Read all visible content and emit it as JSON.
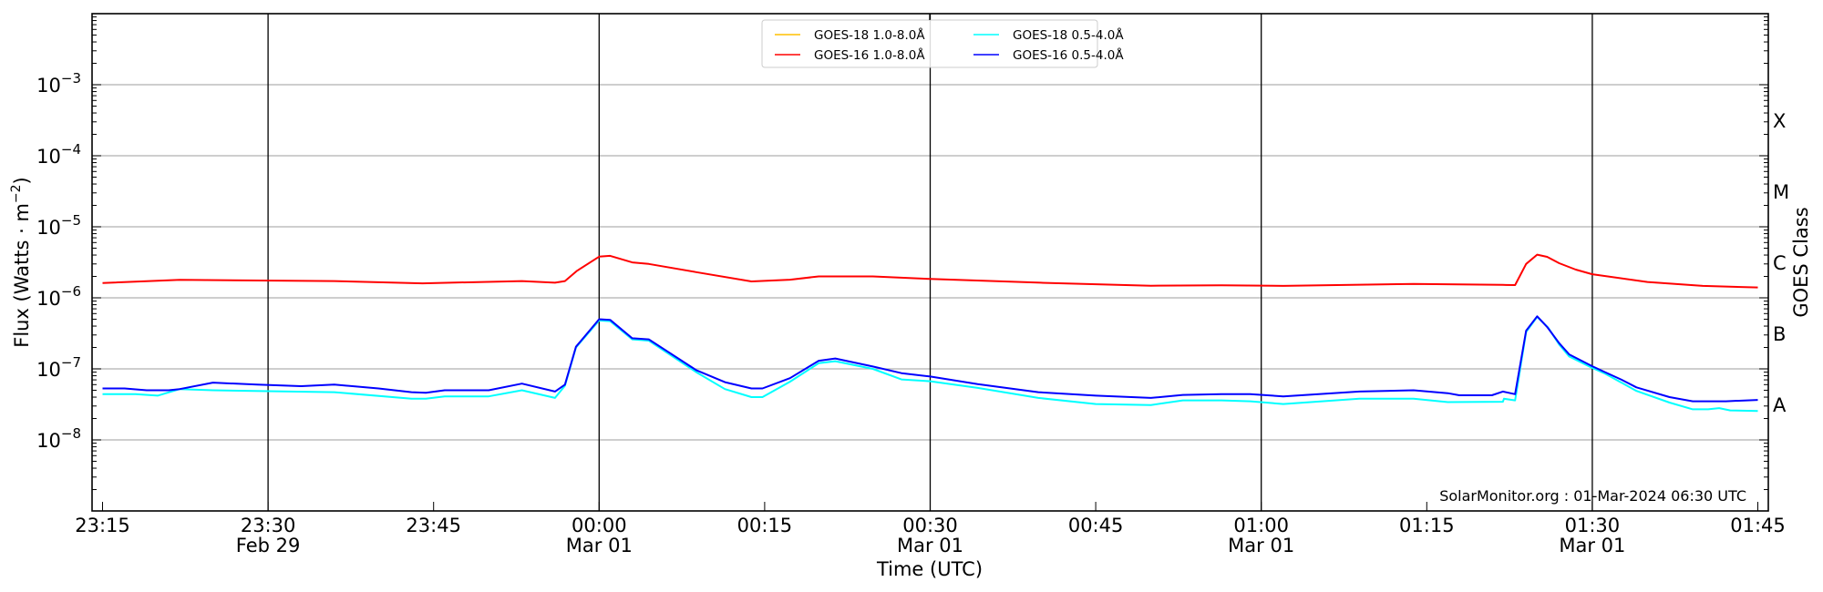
{
  "chart_data": {
    "type": "line",
    "title": "",
    "xlabel": "Time (UTC)",
    "ylabel": "Flux (Watts · m−2)",
    "ylabel_parts": {
      "main": "Flux (Watts · m",
      "exp": "−2",
      "close": ")"
    },
    "y2label": "GOES Class",
    "yscale": "log",
    "ylim": [
      1e-09,
      0.01
    ],
    "x_units": "minutes after 23:15 UTC, 29-Feb-2024",
    "xlim": [
      -0.95,
      150.95
    ],
    "grid": "horizontal at major y ticks",
    "legend_position": "top-center",
    "x_ticks": [
      {
        "t": 0,
        "label": "23:15",
        "sub": ""
      },
      {
        "t": 15,
        "label": "23:30",
        "sub": "Feb 29"
      },
      {
        "t": 30,
        "label": "23:45",
        "sub": ""
      },
      {
        "t": 45,
        "label": "00:00",
        "sub": "Mar 01"
      },
      {
        "t": 60,
        "label": "00:15",
        "sub": ""
      },
      {
        "t": 75,
        "label": "00:30",
        "sub": "Mar 01"
      },
      {
        "t": 90,
        "label": "00:45",
        "sub": ""
      },
      {
        "t": 105,
        "label": "01:00",
        "sub": "Mar 01"
      },
      {
        "t": 120,
        "label": "01:15",
        "sub": ""
      },
      {
        "t": 135,
        "label": "01:30",
        "sub": "Mar 01"
      },
      {
        "t": 150,
        "label": "01:45",
        "sub": ""
      }
    ],
    "day_lines": [
      15,
      45,
      75,
      105,
      135
    ],
    "y_ticks": [
      {
        "v": 0.001,
        "base": "10",
        "exp": "−3"
      },
      {
        "v": 0.0001,
        "base": "10",
        "exp": "−4"
      },
      {
        "v": 1e-05,
        "base": "10",
        "exp": "−5"
      },
      {
        "v": 1e-06,
        "base": "10",
        "exp": "−6"
      },
      {
        "v": 1e-07,
        "base": "10",
        "exp": "−7"
      },
      {
        "v": 1e-08,
        "base": "10",
        "exp": "−8"
      }
    ],
    "goes_classes": [
      {
        "label": "X",
        "v": 0.000316
      },
      {
        "label": "M",
        "v": 3.16e-05
      },
      {
        "label": "C",
        "v": 3.16e-06
      },
      {
        "label": "B",
        "v": 3.16e-07
      },
      {
        "label": "A",
        "v": 3.16e-08
      }
    ],
    "series": [
      {
        "name": "GOES-18 1.0-8.0Å",
        "color": "#ffc000",
        "t": [],
        "values": []
      },
      {
        "name": "GOES-16 1.0-8.0Å",
        "color": "#ff0000",
        "t": [
          0,
          7,
          21,
          29,
          38,
          41,
          41.9,
          43,
          45,
          46,
          48,
          49.5,
          53.8,
          58.8,
          62.3,
          64.9,
          69.8,
          75,
          85,
          95,
          101.4,
          107,
          118.8,
          126.9,
          128,
          129,
          130,
          130.9,
          132,
          133.5,
          135,
          140,
          145,
          150
        ],
        "values": [
          1.62e-06,
          1.79e-06,
          1.72e-06,
          1.6e-06,
          1.72e-06,
          1.63e-06,
          1.72e-06,
          2.4e-06,
          3.8e-06,
          3.9e-06,
          3.15e-06,
          3e-06,
          2.3e-06,
          1.7e-06,
          1.8e-06,
          2e-06,
          2e-06,
          1.84e-06,
          1.63e-06,
          1.48e-06,
          1.5e-06,
          1.47e-06,
          1.57e-06,
          1.52e-06,
          1.51e-06,
          3e-06,
          4.05e-06,
          3.78e-06,
          3.07e-06,
          2.5e-06,
          2.15e-06,
          1.67e-06,
          1.47e-06,
          1.4e-06
        ]
      },
      {
        "name": "GOES-18 0.5-4.0Å",
        "color": "#00ffff",
        "t": [
          0,
          3,
          5,
          7,
          10,
          21,
          28,
          29.3,
          31,
          35,
          38,
          41,
          41.9,
          42.9,
          45,
          46,
          48,
          49.5,
          53.8,
          56.4,
          58.8,
          59.8,
          62.3,
          64.9,
          66.4,
          69.8,
          72.4,
          75,
          79.3,
          84.8,
          90,
          95,
          97.9,
          101.4,
          104,
          107,
          113.9,
          118.8,
          121.9,
          126.9,
          127,
          128,
          129,
          130,
          131,
          132,
          132.9,
          135,
          136.2,
          139,
          142,
          144.1,
          145.5,
          146.5,
          147.5,
          150
        ],
        "values": [
          4.4e-08,
          4.4e-08,
          4.2e-08,
          5.2e-08,
          5e-08,
          4.7e-08,
          3.8e-08,
          3.8e-08,
          4.1e-08,
          4.1e-08,
          5e-08,
          3.9e-08,
          5.8e-08,
          2e-07,
          4.8e-07,
          4.7e-07,
          2.6e-07,
          2.5e-07,
          9e-08,
          5.2e-08,
          4e-08,
          4e-08,
          6.6e-08,
          1.2e-07,
          1.28e-07,
          1e-07,
          7.1e-08,
          6.7e-08,
          5.4e-08,
          3.9e-08,
          3.2e-08,
          3.1e-08,
          3.6e-08,
          3.6e-08,
          3.5e-08,
          3.2e-08,
          3.8e-08,
          3.8e-08,
          3.4e-08,
          3.45e-08,
          3.8e-08,
          3.6e-08,
          3.3e-07,
          5.4e-07,
          3.8e-07,
          2.2e-07,
          1.5e-07,
          1.03e-07,
          8.5e-08,
          4.9e-08,
          3.35e-08,
          2.7e-08,
          2.7e-08,
          2.8e-08,
          2.6e-08,
          2.55e-08
        ]
      },
      {
        "name": "GOES-16 0.5-4.0Å",
        "color": "#0000ff",
        "t": [
          0,
          2,
          4,
          6,
          7,
          10,
          14,
          18,
          21,
          25,
          28,
          29.3,
          31,
          35,
          38,
          41,
          41.9,
          42.9,
          45,
          46,
          48,
          49.5,
          53.8,
          56.4,
          58.8,
          59.8,
          62.3,
          64.9,
          66.4,
          69.8,
          72.4,
          75,
          79.3,
          84.8,
          90,
          95,
          97.9,
          101.4,
          104,
          107,
          113.9,
          118.8,
          121.9,
          122.95,
          125.9,
          126.9,
          128,
          129,
          130,
          130.9,
          132,
          132.9,
          135,
          136.2,
          137.6,
          139,
          142,
          144.1,
          147.1,
          150
        ],
        "values": [
          5.3e-08,
          5.3e-08,
          5e-08,
          5e-08,
          5.2e-08,
          6.4e-08,
          6e-08,
          5.7e-08,
          6e-08,
          5.3e-08,
          4.7e-08,
          4.6e-08,
          5e-08,
          5e-08,
          6.2e-08,
          4.8e-08,
          6e-08,
          2.05e-07,
          5e-07,
          4.9e-07,
          2.7e-07,
          2.6e-07,
          9.6e-08,
          6.5e-08,
          5.3e-08,
          5.3e-08,
          7.4e-08,
          1.3e-07,
          1.4e-07,
          1.08e-07,
          8.7e-08,
          7.8e-08,
          6.1e-08,
          4.7e-08,
          4.2e-08,
          3.9e-08,
          4.3e-08,
          4.4e-08,
          4.4e-08,
          4.1e-08,
          4.8e-08,
          5e-08,
          4.55e-08,
          4.25e-08,
          4.25e-08,
          4.8e-08,
          4.4e-08,
          3.45e-07,
          5.5e-07,
          3.9e-07,
          2.3e-07,
          1.6e-07,
          1.09e-07,
          8.9e-08,
          7.1e-08,
          5.5e-08,
          4e-08,
          3.5e-08,
          3.5e-08,
          3.65e-08
        ]
      }
    ],
    "annotation": "SolarMonitor.org : 01-Mar-2024 06:30 UTC"
  }
}
